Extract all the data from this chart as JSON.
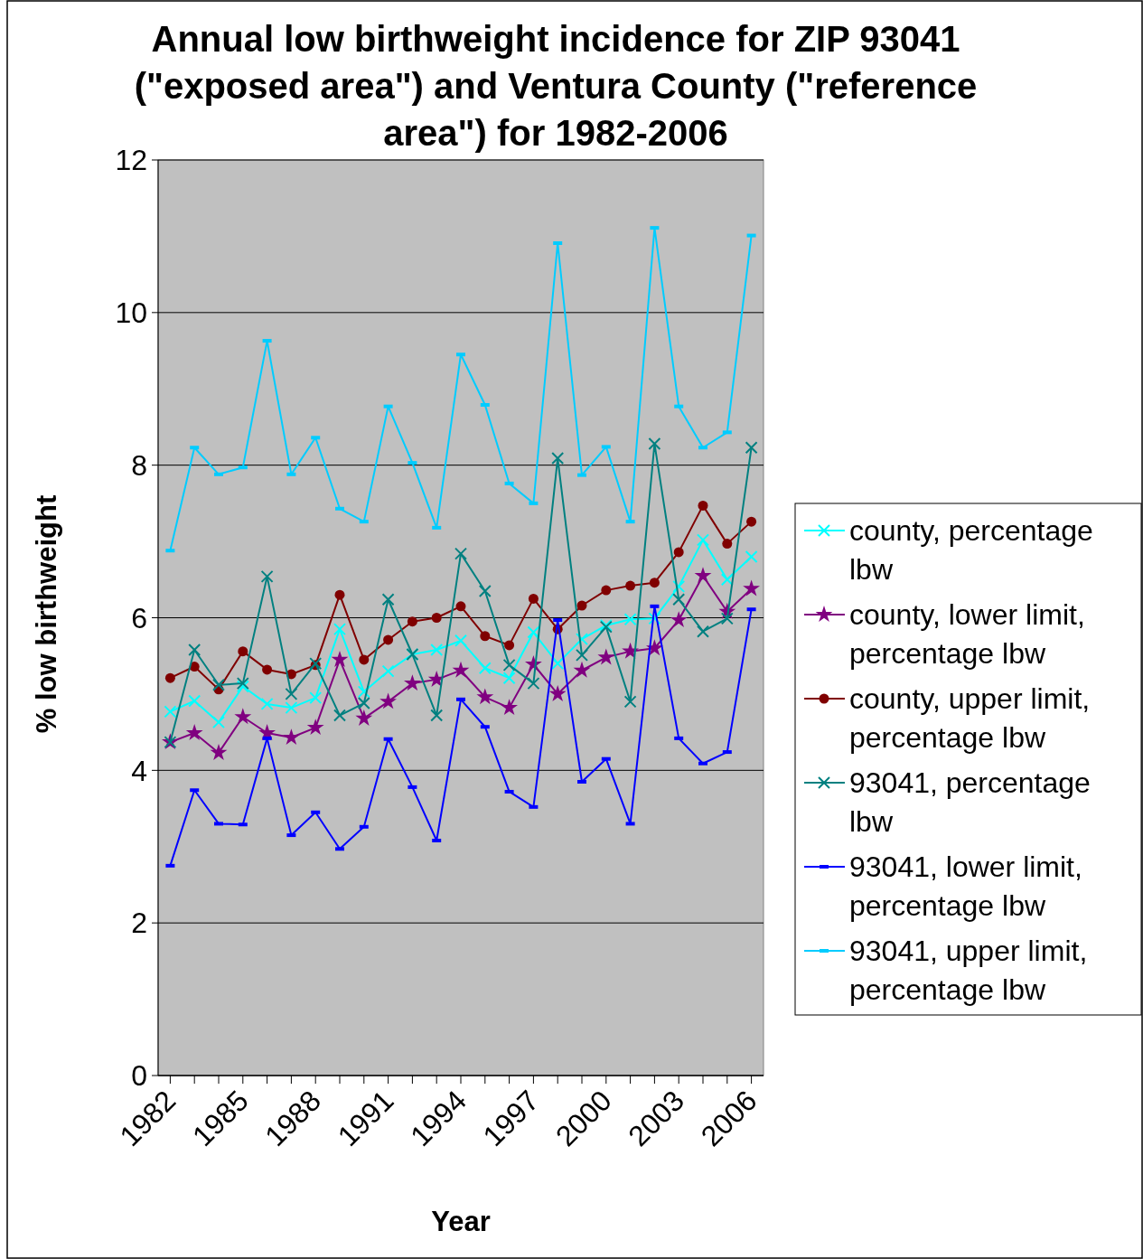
{
  "chart_data": {
    "type": "line",
    "title": "Annual low birthweight incidence for ZIP 93041 (\"exposed area\") and Ventura County (\"reference area\") for 1982-2006",
    "xlabel": "Year",
    "ylabel": "% low birthweight",
    "categories": [
      "1982",
      null,
      null,
      "1985",
      null,
      null,
      "1988",
      null,
      null,
      "1991",
      null,
      null,
      "1994",
      null,
      null,
      "1997",
      null,
      null,
      "2000",
      null,
      null,
      "2003",
      null,
      null,
      "2006"
    ],
    "ylim": [
      0,
      12
    ],
    "yticks": [
      0,
      2,
      4,
      6,
      8,
      10,
      12
    ],
    "grid": "y",
    "legend": "right",
    "series": [
      {
        "name": "county, percentage lbw",
        "color": "#00ffff",
        "marker": "cross",
        "values": [
          4.77,
          4.91,
          4.63,
          5.1,
          4.87,
          4.82,
          4.95,
          5.85,
          5.03,
          5.3,
          5.52,
          5.58,
          5.7,
          5.34,
          5.21,
          5.81,
          5.4,
          5.72,
          5.9,
          5.98,
          5.99,
          6.41,
          7.02,
          6.5,
          6.8
        ]
      },
      {
        "name": "county, lower limit, percentage lbw",
        "color": "#800080",
        "marker": "star",
        "values": [
          4.37,
          4.49,
          4.23,
          4.7,
          4.49,
          4.43,
          4.56,
          5.45,
          4.68,
          4.9,
          5.14,
          5.19,
          5.31,
          4.96,
          4.82,
          5.39,
          5.0,
          5.31,
          5.48,
          5.56,
          5.6,
          5.97,
          6.55,
          6.08,
          6.38
        ]
      },
      {
        "name": "county, upper limit, percentage lbw",
        "color": "#800000",
        "marker": "circle",
        "values": [
          5.21,
          5.36,
          5.06,
          5.56,
          5.32,
          5.26,
          5.38,
          6.3,
          5.45,
          5.71,
          5.95,
          6.0,
          6.15,
          5.76,
          5.64,
          6.25,
          5.85,
          6.16,
          6.36,
          6.42,
          6.46,
          6.86,
          7.47,
          6.97,
          7.26
        ]
      },
      {
        "name": "93041, percentage lbw",
        "color": "#008080",
        "marker": "cross",
        "values": [
          4.37,
          5.58,
          5.12,
          5.14,
          6.54,
          5.0,
          5.4,
          4.72,
          4.88,
          6.24,
          5.52,
          4.72,
          6.84,
          6.35,
          5.38,
          5.14,
          8.09,
          5.51,
          5.88,
          4.9,
          8.28,
          6.24,
          5.82,
          5.99,
          8.23
        ]
      },
      {
        "name": "93041, lower limit, percentage lbw",
        "color": "#0000ff",
        "marker": "square",
        "values": [
          2.75,
          3.74,
          3.3,
          3.29,
          4.42,
          3.15,
          3.45,
          2.97,
          3.26,
          4.41,
          3.78,
          3.08,
          4.93,
          4.57,
          3.72,
          3.52,
          5.97,
          3.85,
          4.15,
          3.3,
          6.15,
          4.42,
          4.09,
          4.24,
          6.11
        ]
      },
      {
        "name": "93041, upper limit, percentage lbw",
        "color": "#00ccff",
        "marker": "square",
        "values": [
          6.88,
          8.23,
          7.88,
          7.97,
          9.63,
          7.88,
          8.36,
          7.43,
          7.26,
          8.77,
          8.03,
          7.18,
          9.45,
          8.79,
          7.76,
          7.5,
          10.91,
          7.87,
          8.24,
          7.26,
          11.11,
          8.77,
          8.23,
          8.43,
          11.01
        ]
      }
    ]
  }
}
